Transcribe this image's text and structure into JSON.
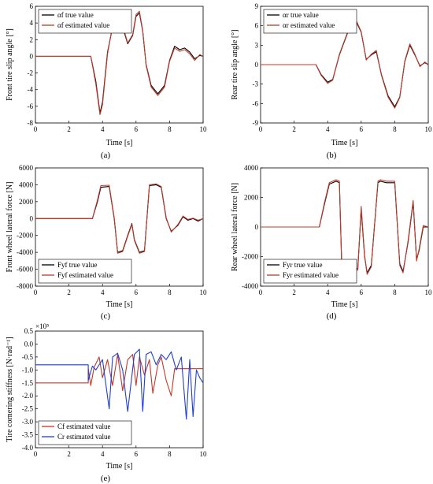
{
  "chart_data": [
    {
      "id": "a",
      "type": "line",
      "caption": "(a)",
      "xlabel": "Time [s]",
      "ylabel": "Front tire slip angle [°]",
      "xlim": [
        0,
        10
      ],
      "ylim": [
        -8,
        6
      ],
      "xticks": [
        0,
        2,
        4,
        6,
        8,
        10
      ],
      "yticks": [
        6,
        4,
        2,
        0,
        -2,
        -4,
        -6,
        -8
      ],
      "legend": "top-left",
      "series": [
        {
          "name": "αf true value",
          "color": "#000000",
          "x": [
            0,
            3.3,
            3.6,
            3.85,
            4.0,
            4.3,
            4.6,
            4.9,
            5.2,
            5.5,
            5.8,
            6.0,
            6.2,
            6.4,
            6.6,
            6.9,
            7.3,
            7.7,
            8.0,
            8.3,
            8.6,
            8.9,
            9.2,
            9.5,
            9.8,
            10
          ],
          "values": [
            0,
            0,
            -3.0,
            -6.8,
            -5.5,
            0.5,
            3.5,
            4.2,
            3.5,
            1.5,
            2.5,
            4.8,
            5.2,
            3.0,
            -1.0,
            -3.5,
            -4.5,
            -3.5,
            -0.5,
            1.2,
            0.8,
            1.0,
            0.5,
            -0.3,
            0.1,
            0
          ]
        },
        {
          "name": "αf estimated value",
          "color": "#c0392b",
          "x": [
            0,
            3.3,
            3.6,
            3.85,
            4.0,
            4.3,
            4.6,
            4.9,
            5.2,
            5.5,
            5.8,
            6.0,
            6.2,
            6.4,
            6.6,
            6.9,
            7.3,
            7.7,
            8.0,
            8.3,
            8.6,
            8.9,
            9.2,
            9.5,
            9.8,
            10
          ],
          "values": [
            0,
            0,
            -3.3,
            -7.0,
            -5.8,
            0.3,
            3.7,
            4.4,
            3.7,
            1.6,
            2.6,
            5.0,
            5.4,
            3.1,
            -1.1,
            -3.7,
            -4.7,
            -3.7,
            -0.6,
            1.0,
            0.6,
            0.8,
            0.3,
            -0.5,
            0.2,
            0
          ]
        }
      ]
    },
    {
      "id": "b",
      "type": "line",
      "caption": "(b)",
      "xlabel": "Time [s]",
      "ylabel": "Rear tire slip angle [°]",
      "xlim": [
        0,
        10
      ],
      "ylim": [
        -9,
        9
      ],
      "xticks": [
        0,
        2,
        4,
        6,
        8,
        10
      ],
      "yticks": [
        9,
        6,
        3,
        0,
        -3,
        -6,
        -9
      ],
      "legend": "top-left",
      "series": [
        {
          "name": "αr true value",
          "color": "#000000",
          "x": [
            0,
            3.3,
            3.6,
            4.0,
            4.3,
            4.7,
            5.2,
            5.6,
            6.0,
            6.3,
            6.6,
            6.9,
            7.2,
            7.6,
            8.0,
            8.3,
            8.6,
            8.9,
            9.2,
            9.5,
            9.8,
            10
          ],
          "values": [
            0,
            0,
            -1.5,
            -2.7,
            -2.3,
            1.5,
            5.0,
            7.2,
            5.0,
            0.8,
            1.5,
            2.0,
            -1.5,
            -4.8,
            -6.5,
            -5.0,
            0.5,
            3.0,
            1.5,
            -0.2,
            0.3,
            0
          ]
        },
        {
          "name": "αr estimated value",
          "color": "#c0392b",
          "x": [
            0,
            3.3,
            3.6,
            4.0,
            4.3,
            4.7,
            5.2,
            5.6,
            6.0,
            6.3,
            6.6,
            6.9,
            7.2,
            7.6,
            8.0,
            8.3,
            8.6,
            8.9,
            9.2,
            9.5,
            9.8,
            10
          ],
          "values": [
            0,
            0,
            -1.6,
            -2.9,
            -2.4,
            1.6,
            5.1,
            7.4,
            5.1,
            0.7,
            1.6,
            2.2,
            -1.6,
            -5.0,
            -6.7,
            -5.1,
            0.6,
            3.2,
            1.6,
            -0.3,
            0.4,
            0
          ]
        }
      ]
    },
    {
      "id": "c",
      "type": "line",
      "caption": "(c)",
      "xlabel": "Time [s]",
      "ylabel": "Front wheel lateral force [N]",
      "xlim": [
        0,
        10
      ],
      "ylim": [
        -8000,
        6000
      ],
      "xticks": [
        0,
        2,
        4,
        6,
        8,
        10
      ],
      "yticks": [
        6000,
        4000,
        2000,
        0,
        -2000,
        -4000,
        -6000,
        -8000
      ],
      "legend": "bottom-left",
      "series": [
        {
          "name": "Fyf true value",
          "color": "#000000",
          "x": [
            0,
            3.4,
            3.7,
            3.9,
            4.4,
            4.7,
            4.9,
            5.2,
            5.5,
            5.75,
            5.9,
            6.2,
            6.5,
            6.8,
            7.2,
            7.5,
            7.8,
            8.1,
            8.5,
            8.8,
            9.1,
            9.4,
            9.7,
            10
          ],
          "values": [
            0,
            0,
            2000,
            3700,
            3800,
            0,
            -4000,
            -3800,
            -2000,
            -600,
            -2500,
            -4000,
            -3800,
            3900,
            4000,
            3700,
            0,
            -1500,
            -800,
            200,
            -200,
            0,
            -300,
            0
          ]
        },
        {
          "name": "Fyf estimated value",
          "color": "#c0392b",
          "x": [
            0,
            3.4,
            3.7,
            3.9,
            4.4,
            4.7,
            4.9,
            5.2,
            5.5,
            5.75,
            5.9,
            6.2,
            6.5,
            6.8,
            7.2,
            7.5,
            7.8,
            8.1,
            8.5,
            8.8,
            9.1,
            9.4,
            9.7,
            10
          ],
          "values": [
            0,
            0,
            2200,
            3900,
            3950,
            100,
            -4100,
            -3900,
            -2100,
            -700,
            -2600,
            -4100,
            -3900,
            4000,
            4100,
            3800,
            100,
            -1600,
            -700,
            300,
            -100,
            50,
            -200,
            0
          ]
        }
      ]
    },
    {
      "id": "d",
      "type": "line",
      "caption": "(d)",
      "xlabel": "Time [s]",
      "ylabel": "Rear wheel lateral force [N]",
      "xlim": [
        0,
        10
      ],
      "ylim": [
        -4000,
        4000
      ],
      "xticks": [
        0,
        2,
        4,
        6,
        8,
        10
      ],
      "yticks": [
        4000,
        2000,
        0,
        -2000,
        -4000
      ],
      "legend": "bottom-left",
      "series": [
        {
          "name": "Fyr true value",
          "color": "#000000",
          "x": [
            0,
            3.5,
            3.8,
            4.1,
            4.5,
            4.7,
            4.85,
            5.3,
            5.8,
            6.0,
            6.2,
            6.35,
            6.6,
            7.0,
            7.15,
            7.5,
            8.0,
            8.3,
            8.5,
            8.8,
            9.1,
            9.3,
            9.45,
            9.7,
            10
          ],
          "values": [
            0,
            0,
            1500,
            2900,
            3100,
            3000,
            -3000,
            -3000,
            -2800,
            1200,
            -2000,
            -3100,
            -2600,
            3000,
            3100,
            3000,
            3000,
            -2500,
            -3000,
            -1000,
            1700,
            -2200,
            -1600,
            0,
            0
          ]
        },
        {
          "name": "Fyr estimated value",
          "color": "#c0392b",
          "x": [
            0,
            3.5,
            3.8,
            4.1,
            4.5,
            4.7,
            4.85,
            5.3,
            5.8,
            6.0,
            6.2,
            6.35,
            6.6,
            7.0,
            7.15,
            7.5,
            8.0,
            8.3,
            8.5,
            8.8,
            9.1,
            9.3,
            9.45,
            9.7,
            10
          ],
          "values": [
            0,
            0,
            1600,
            3000,
            3200,
            3100,
            -3100,
            -3100,
            -2900,
            1400,
            -1900,
            -3200,
            -2700,
            3100,
            3200,
            3100,
            3100,
            -2600,
            -3100,
            -900,
            1800,
            -2300,
            -1500,
            100,
            0
          ]
        }
      ]
    },
    {
      "id": "e",
      "type": "line",
      "caption": "(e)",
      "xlabel": "Time [s]",
      "ylabel": "Tire cornering stiffness [N·rad⁻¹]",
      "scale_note": "×10⁵",
      "xlim": [
        0,
        10
      ],
      "ylim": [
        -4.0,
        0.5
      ],
      "xticks": [
        0,
        2,
        4,
        6,
        8,
        10
      ],
      "yticks": [
        0.5,
        0.0,
        -0.5,
        -1.0,
        -1.5,
        -2.0,
        -2.5,
        -3.0,
        -3.5,
        -4.0
      ],
      "legend": "bottom-left",
      "series": [
        {
          "name": "Cf estimated value",
          "color": "#c0392b",
          "x": [
            0,
            3.15,
            3.15,
            3.3,
            3.5,
            3.8,
            4.0,
            4.3,
            4.6,
            4.9,
            5.2,
            5.5,
            5.8,
            6.0,
            6.2,
            6.5,
            6.8,
            7.0,
            7.3,
            7.5,
            7.8,
            8.1,
            8.3,
            8.6,
            9.0,
            9.3,
            9.6,
            10
          ],
          "values": [
            -1.5,
            -1.5,
            -0.95,
            -1.6,
            -0.9,
            -0.5,
            -1.3,
            -0.6,
            -1.6,
            -0.4,
            -1.8,
            -0.6,
            -0.4,
            -1.6,
            -0.5,
            -1.2,
            -0.6,
            -1.9,
            -0.8,
            -0.5,
            -1.4,
            -2.0,
            -0.95,
            -0.95,
            -0.95,
            -0.95,
            -0.95,
            -0.95
          ]
        },
        {
          "name": "Cr estimated value",
          "color": "#1f3fcf",
          "x": [
            0,
            3.15,
            3.15,
            3.4,
            3.6,
            4.0,
            4.4,
            4.6,
            4.9,
            5.2,
            5.5,
            5.9,
            6.2,
            6.4,
            6.6,
            6.9,
            7.2,
            7.5,
            7.8,
            8.1,
            8.4,
            8.7,
            9.0,
            9.2,
            9.4,
            9.6,
            9.8,
            10
          ],
          "values": [
            -0.8,
            -0.8,
            -1.4,
            -0.85,
            -1.0,
            -0.6,
            -2.5,
            -0.5,
            -0.35,
            -1.0,
            -2.6,
            -0.4,
            -0.2,
            -2.6,
            -0.4,
            -0.3,
            -0.8,
            -0.4,
            -0.6,
            -0.3,
            -1.0,
            -0.5,
            -2.9,
            -0.6,
            -2.8,
            -1.0,
            -1.3,
            -1.5
          ]
        }
      ]
    }
  ]
}
